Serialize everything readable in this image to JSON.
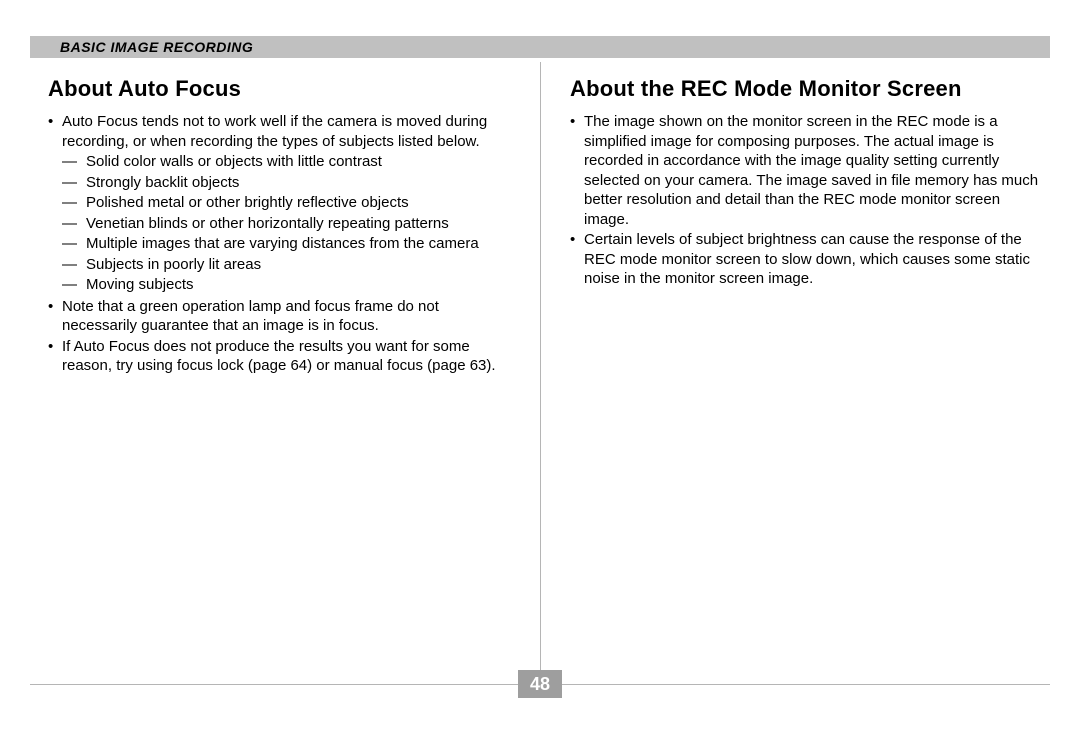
{
  "header": {
    "title": "BASIC IMAGE RECORDING"
  },
  "left": {
    "heading": "About Auto Focus",
    "b1": "Auto Focus tends not to work well if the camera is moved during recording, or when recording the types of subjects listed below.",
    "s1": "Solid color walls or objects with little contrast",
    "s2": "Strongly backlit objects",
    "s3": "Polished metal or other brightly reflective objects",
    "s4": "Venetian blinds or other horizontally repeating patterns",
    "s5": "Multiple images that are varying distances from the camera",
    "s6": "Subjects in poorly lit areas",
    "s7": "Moving subjects",
    "b2": "Note that a green operation lamp and focus frame do not necessarily guarantee that an image is in focus.",
    "b3": "If Auto Focus does not produce the results you want for some reason, try using focus lock (page 64) or manual focus (page 63)."
  },
  "right": {
    "heading": "About the REC Mode Monitor Screen",
    "b1": "The image shown on the monitor screen in the REC mode is a simplified image for composing purposes. The actual image is recorded in accordance with the image quality setting currently selected on your camera. The image saved in file memory has much better resolution and detail than the REC mode monitor screen image.",
    "b2": "Certain levels of subject brightness can cause the response of the REC mode monitor screen to slow down, which causes some static noise in the monitor screen image."
  },
  "page": "48",
  "glyphs": {
    "bullet": "•",
    "dash": "—"
  }
}
